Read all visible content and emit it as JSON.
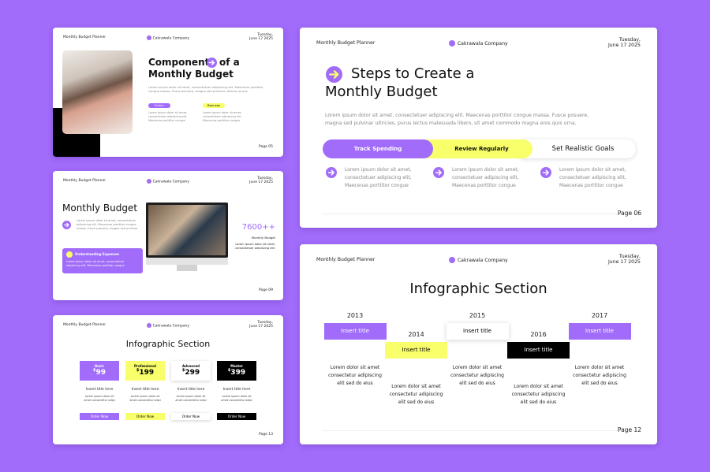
{
  "slides": [
    {
      "header": {
        "planner": "Monthly Budget Planner",
        "company": "Cakrawala Company",
        "date": [
          "Tuesday,",
          "June 17 2025"
        ]
      },
      "title": [
        "Components",
        "of a",
        "Monthly Budget"
      ],
      "body": "Lorem ipsum dolor sit amet, consectetuer adipiscing elit. Maecenas porttitor congue massa. Fusce posuere, magna sed pulvinar ultricies purus",
      "tags": [
        {
          "label": "Salary",
          "text": "Lorem ipsum dolor sit amet, consectetuer adipiscing elit. Maecenas porttitor congue"
        },
        {
          "label": "Bonuses",
          "text": "Lorem ipsum dolor sit amet, consectetuer adipiscing elit. Maecenas porttitor congue"
        }
      ],
      "page": "Page 05"
    },
    {
      "header": {
        "planner": "Monthly Budget Planner",
        "company": "Cakrawala Company",
        "date": [
          "Tuesday,",
          "June 17 2025"
        ]
      },
      "title": "Monthly Budget",
      "body": "Lorem ipsum dolor sit amet, consectetuer adipiscing elit. Maecenas porttitor congue massa. Fusce posuere, magna sed pulvinar",
      "callout": {
        "title": "Understanding Expenses",
        "text": "Lorem ipsum dolor sit amet, consectetuer adipiscing elit, Maecenas porttitor congue"
      },
      "stat": "7600++",
      "stat_label": "Monthly Budget",
      "stat_text": "Lorem ipsum dolor sit amet, consectetuer adipiscing elit.",
      "page": "Page 09"
    },
    {
      "header": {
        "planner": "Monthly Budget Planner",
        "company": "Cakrawala Company",
        "date": [
          "Tuesday,",
          "June 17 2025"
        ]
      },
      "title": "Infographic Section",
      "plans": [
        {
          "name": "Basic",
          "currency": "$",
          "price": "99",
          "title": "Insert title here",
          "text": "Lorem ipsum dolor sit amet consectetur adipi",
          "button": "Order Now"
        },
        {
          "name": "Professional",
          "currency": "$",
          "price": "199",
          "title": "Insert title here",
          "text": "Lorem ipsum dolor sit amet consectetur adipi",
          "button": "Order Now"
        },
        {
          "name": "Advanced",
          "currency": "$",
          "price": "299",
          "title": "Insert title here",
          "text": "Lorem ipsum dolor sit amet consectetur adipi",
          "button": "Order Now"
        },
        {
          "name": "Master",
          "currency": "$",
          "price": "399",
          "title": "Insert title here",
          "text": "Lorem ipsum dolor sit amet consectetur adipi",
          "button": "Order Now"
        }
      ],
      "page": "Page 13"
    },
    {
      "header": {
        "planner": "Monthly Budget Planner",
        "company": "Cakrawala Company",
        "date": [
          "Tuesday,",
          "June 17 2025"
        ]
      },
      "title": [
        "Steps to Create a",
        "Monthly Budget"
      ],
      "body": "Lorem ipsum dolor sit amet, consectetuer adipiscing elit. Maecenas porttitor congue massa. Fusce posuere, magna sed pulvinar ultricies, purus lectus malesuada libero, sit amet commodo magna eros quis urna.",
      "steps": [
        "Track Spending",
        "Review Regularly",
        "Set Realistic Goals"
      ],
      "items": [
        "Lorem ipsum dolor sit amet, consectetuer adipiscing elit, Maecenas porttitor congue",
        "Lorem ipsum dolor sit amet, consectetuer adipiscing elit, Maecenas porttitor congue",
        "Lorem ipsum dolor sit amet, consectetuer adipiscing elit, Maecenas porttitor congue"
      ],
      "page": "Page 06"
    },
    {
      "header": {
        "planner": "Monthly Budget Planner",
        "company": "Cakrawala Company",
        "date": [
          "Tuesday,",
          "June 17 2025"
        ]
      },
      "title": "Infographic Section",
      "timeline": [
        {
          "year": "2013",
          "title": "Insert title",
          "text": "Lorem dolor sit amet consectetur adipiscing elit sed do eius"
        },
        {
          "year": "2014",
          "title": "Insert title",
          "text": "Lorem dolor sit amet consectetur adipiscing elit sed do eius"
        },
        {
          "year": "2015",
          "title": "Insert title",
          "text": "Lorem dolor sit amet consectetur adipiscing elit sed do eius"
        },
        {
          "year": "2016",
          "title": "Insert title",
          "text": "Lorem dolor sit amet consectetur adipiscing elit sed do eius"
        },
        {
          "year": "2017",
          "title": "Insert title",
          "text": "Lorem dolor sit amet consectetur adipiscing elit sed do eius"
        }
      ],
      "page": "Page 12"
    }
  ]
}
